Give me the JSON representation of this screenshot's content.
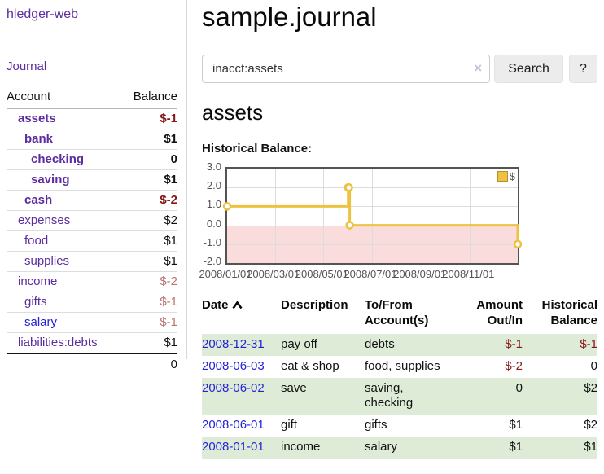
{
  "app": {
    "title": "hledger-web"
  },
  "sidebar": {
    "journal_link": "Journal",
    "accounts_header": {
      "account": "Account",
      "balance": "Balance"
    },
    "accounts": [
      {
        "name": "assets",
        "level": 1,
        "balance": "$-1",
        "emph": true
      },
      {
        "name": "bank",
        "level": 2,
        "balance": "$1",
        "emph": true
      },
      {
        "name": "checking",
        "level": 3,
        "balance": "0",
        "emph": true
      },
      {
        "name": "saving",
        "level": 3,
        "balance": "$1",
        "emph": true
      },
      {
        "name": "cash",
        "level": 2,
        "balance": "$-2",
        "emph": true
      },
      {
        "name": "expenses",
        "level": 1,
        "balance": "$2"
      },
      {
        "name": "food",
        "level": 2,
        "balance": "$1"
      },
      {
        "name": "supplies",
        "level": 2,
        "balance": "$1"
      },
      {
        "name": "income",
        "level": 1,
        "balance": "$-2"
      },
      {
        "name": "gifts",
        "level": 2,
        "balance": "$-1"
      },
      {
        "name": "salary",
        "level": 2,
        "balance": "$-1",
        "unvisited": true
      },
      {
        "name": "liabilities:debts",
        "level": 1,
        "balance": "$1"
      }
    ],
    "total": "0"
  },
  "main": {
    "title": "sample.journal",
    "search": {
      "value": "inacct:assets",
      "clear_icon": "×",
      "search_button": "Search",
      "help_button": "?"
    },
    "account_heading": "assets",
    "chart_label": "Historical Balance:",
    "register": {
      "columns": [
        {
          "label": "Date",
          "sort": "ascending"
        },
        {
          "label": "Description"
        },
        {
          "label": "To/From Account(s)"
        },
        {
          "label": "Amount Out/In"
        },
        {
          "label": "Historical Balance"
        }
      ],
      "rows": [
        {
          "date": "2008-12-31",
          "description": "pay off",
          "accounts": "debts",
          "amount": "$-1",
          "balance": "$-1"
        },
        {
          "date": "2008-06-03",
          "description": "eat & shop",
          "accounts": "food, supplies",
          "amount": "$-2",
          "balance": "0"
        },
        {
          "date": "2008-06-02",
          "description": "save",
          "accounts": "saving, checking",
          "amount": "0",
          "balance": "$2"
        },
        {
          "date": "2008-06-01",
          "description": "gift",
          "accounts": "gifts",
          "amount": "$1",
          "balance": "$2"
        },
        {
          "date": "2008-01-01",
          "description": "income",
          "accounts": "salary",
          "amount": "$1",
          "balance": "$1"
        }
      ]
    }
  },
  "chart_data": {
    "type": "line",
    "title": "Historical Balance:",
    "style": "steps-with-markers",
    "series": [
      {
        "name": "$",
        "color": "#edc240",
        "points": [
          [
            "2008-01-01",
            1
          ],
          [
            "2008-06-01",
            2
          ],
          [
            "2008-06-02",
            2
          ],
          [
            "2008-06-03",
            0
          ],
          [
            "2008-12-31",
            -1
          ]
        ]
      }
    ],
    "xlim": [
      "2008-01-01",
      "2008-12-31"
    ],
    "ylim": [
      -2,
      3
    ],
    "x_ticks": [
      "2008/01/01",
      "2008/03/01",
      "2008/05/01",
      "2008/07/01",
      "2008/09/01",
      "2008/11/01"
    ],
    "y_ticks": [
      "3.0",
      "2.0",
      "1.0",
      "0.0",
      "-1.0",
      "-2.0"
    ],
    "grid": true,
    "legend": {
      "label": "$",
      "position": "top-right"
    },
    "negative_region_color": "#fbdcdc",
    "zero_line_color": "#8b0000"
  },
  "colors": {
    "link_purple": "#5b2d9e",
    "link_blue": "#2323d9",
    "negative_strong": "#861818",
    "negative_faded": "#bb7575",
    "row_green": "#deecd7",
    "series_yellow": "#edc240"
  },
  "icons": {
    "clear_search": "×",
    "sort_ascending": "chevron-up",
    "legend_swatch": "square"
  }
}
